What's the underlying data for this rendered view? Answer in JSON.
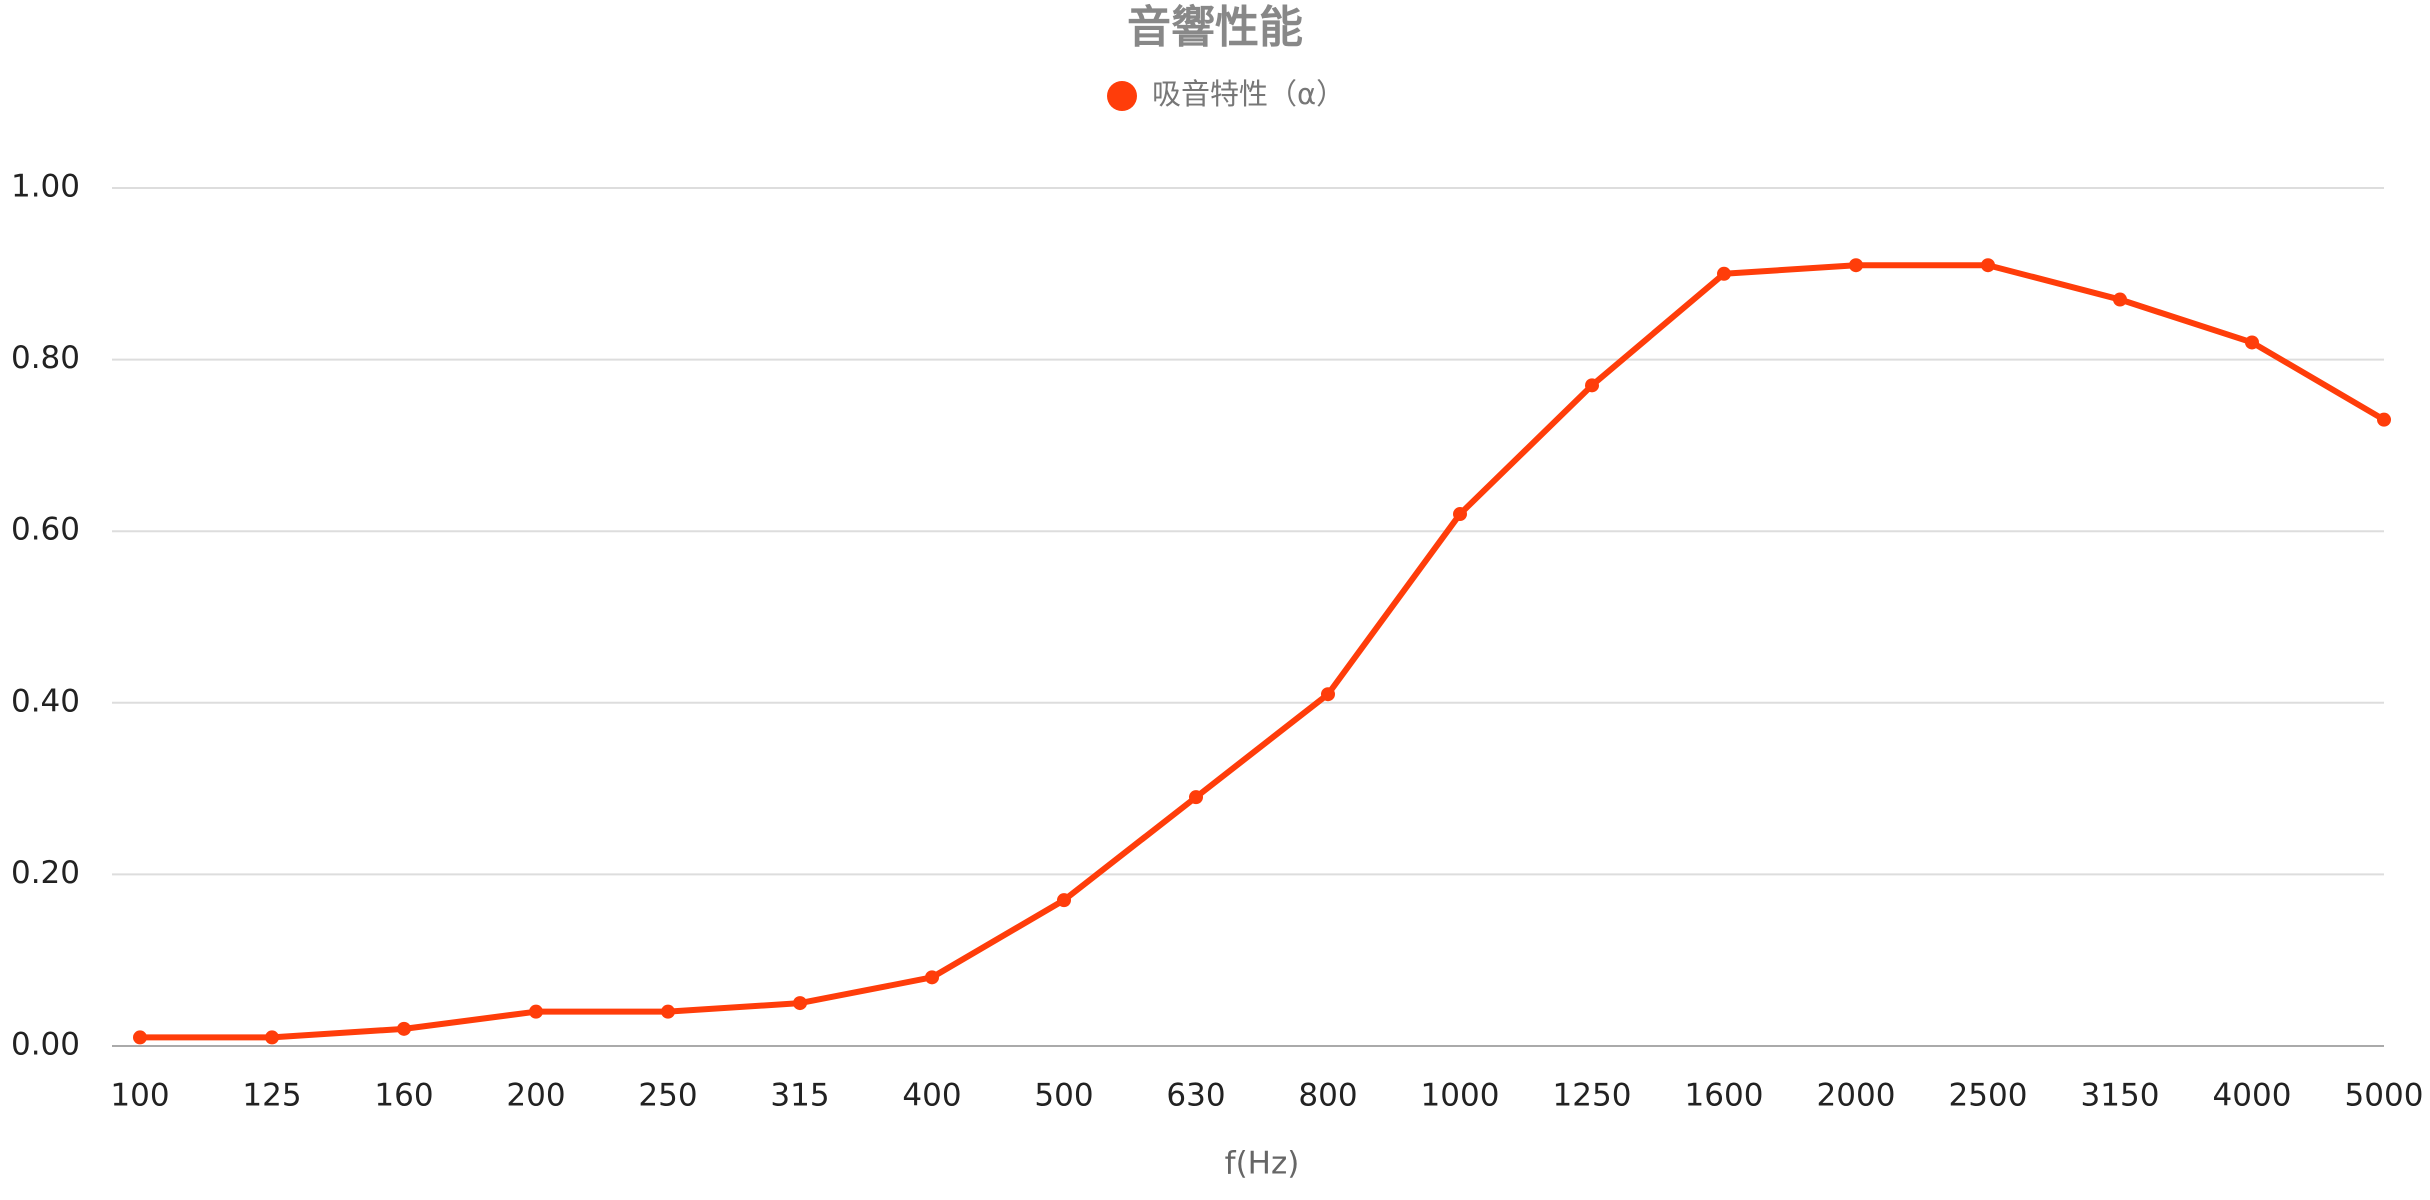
{
  "chart_data": {
    "type": "line",
    "title": "音響性能",
    "x_label": "f(Hz)",
    "categories": [
      "100",
      "125",
      "160",
      "200",
      "250",
      "315",
      "400",
      "500",
      "630",
      "800",
      "1000",
      "1250",
      "1600",
      "2000",
      "2500",
      "3150",
      "4000",
      "5000"
    ],
    "series": [
      {
        "name": "吸音特性（α）",
        "color": "#ff3d0a",
        "values": [
          0.01,
          0.01,
          0.02,
          0.04,
          0.04,
          0.05,
          0.08,
          0.17,
          0.29,
          0.41,
          0.62,
          0.77,
          0.9,
          0.91,
          0.91,
          0.87,
          0.82,
          0.73
        ]
      }
    ],
    "ylim": [
      0,
      1
    ],
    "yticks": [
      {
        "value": 0,
        "label": "0.00"
      },
      {
        "value": 0.2,
        "label": "0.20"
      },
      {
        "value": 0.4,
        "label": "0.40"
      },
      {
        "value": 0.6,
        "label": "0.60"
      },
      {
        "value": 0.8,
        "label": "0.80"
      },
      {
        "value": 1,
        "label": "1.00"
      }
    ],
    "grid": true,
    "legend": "top"
  }
}
